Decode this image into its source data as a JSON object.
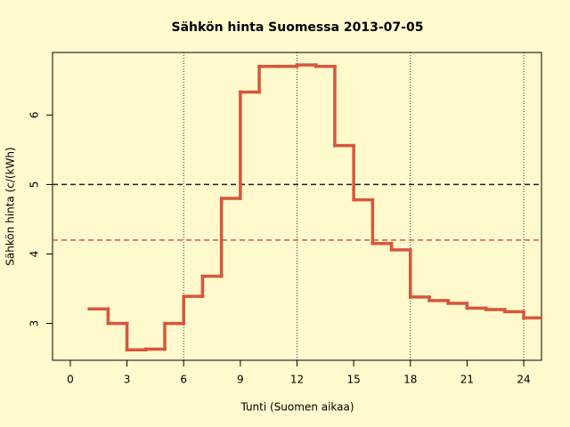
{
  "chart_data": {
    "type": "step",
    "title": "Sähkön hinta Suomessa 2013-07-05",
    "x_label": "Tunti (Suomen aikaa)",
    "y_label": "Sähkön hinta (c/(kWh)",
    "x": [
      1,
      2,
      3,
      4,
      5,
      6,
      7,
      8,
      9,
      10,
      11,
      12,
      13,
      14,
      15,
      16,
      17,
      18,
      19,
      20,
      21,
      22,
      23,
      24
    ],
    "values": [
      3.21,
      3.0,
      2.62,
      2.63,
      3.0,
      3.39,
      3.68,
      4.8,
      6.33,
      6.7,
      6.7,
      6.72,
      6.7,
      5.56,
      4.78,
      4.15,
      4.06,
      3.38,
      3.33,
      3.29,
      3.22,
      3.2,
      3.17,
      3.08
    ],
    "step_width": 1,
    "color": "#d9553b",
    "xlim": [
      -0.94,
      24.94
    ],
    "ylim": [
      2.47,
      6.9
    ],
    "xticks": [
      0,
      3,
      6,
      9,
      12,
      15,
      18,
      21,
      24
    ],
    "yticks": [
      3,
      4,
      5,
      6
    ],
    "hlines": [
      {
        "value": 5,
        "color": "#222222"
      },
      {
        "value": 4.2,
        "color": "#d9553b"
      }
    ],
    "vlines": [
      6,
      12,
      18,
      24
    ]
  }
}
